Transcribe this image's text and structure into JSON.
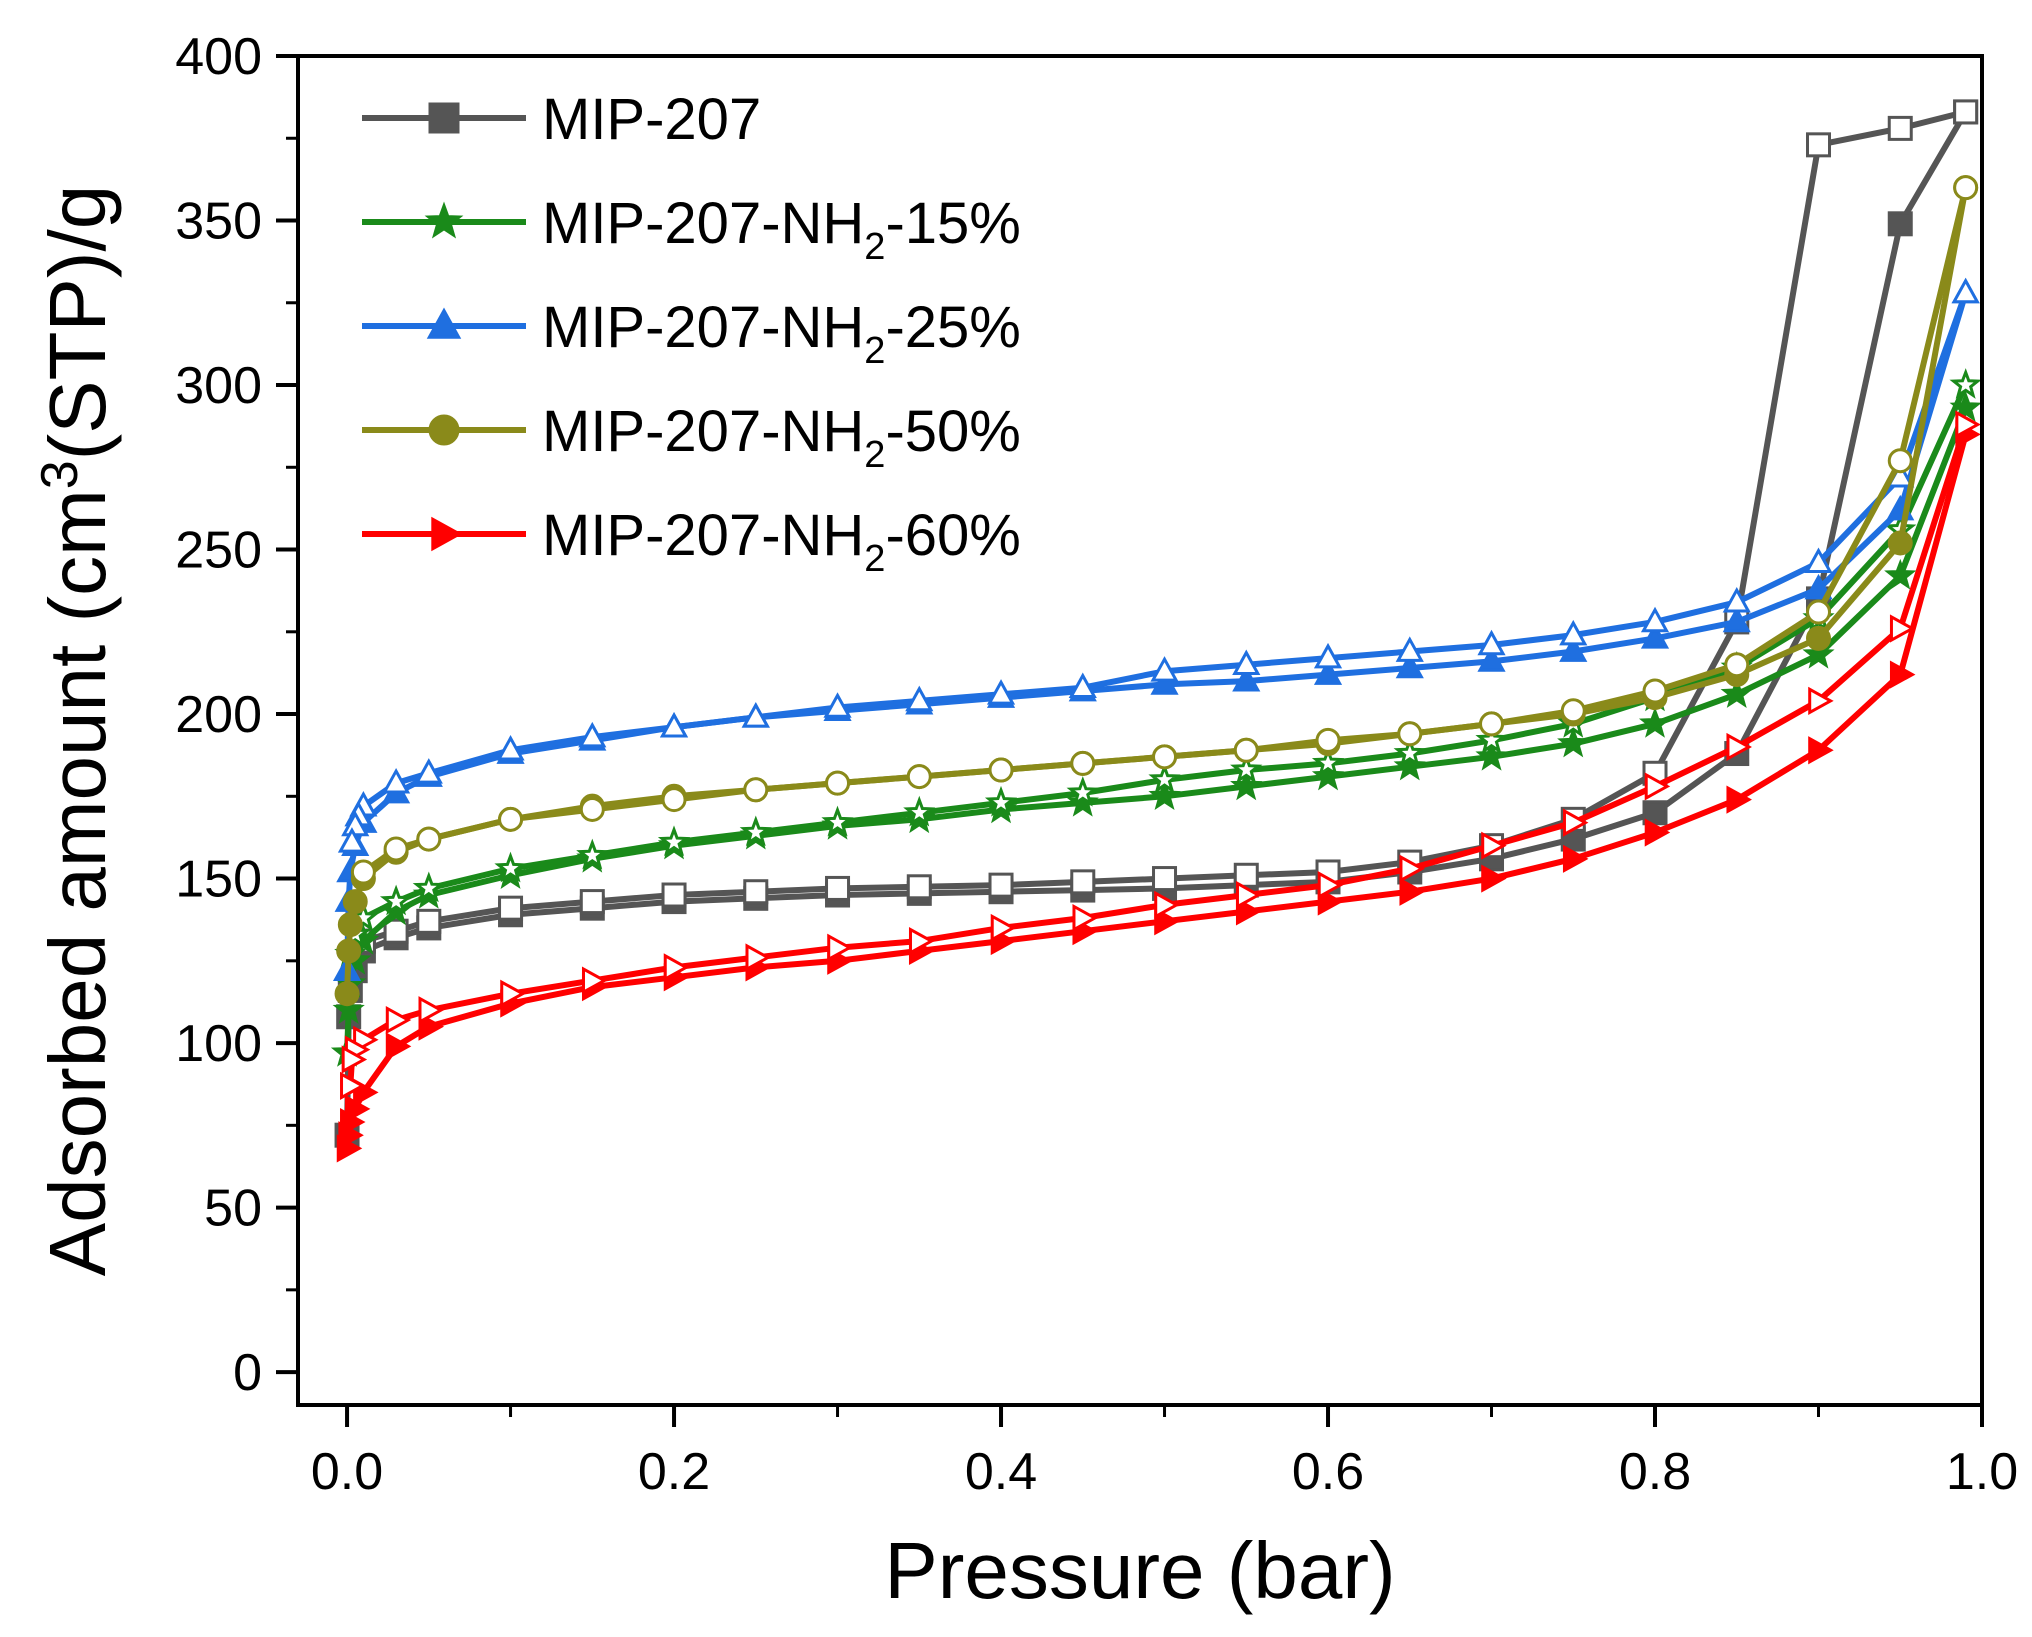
{
  "chart_data": {
    "type": "line",
    "title": "",
    "xlabel": "Pressure (bar)",
    "ylabel_parts": {
      "pre": "Adsorbed amount (cm",
      "sup": "3",
      "post": "(STP)/g"
    },
    "xlim": [
      -0.03,
      1.0
    ],
    "ylim": [
      -10,
      400
    ],
    "xticks": [
      0.0,
      0.2,
      0.4,
      0.6,
      0.8,
      1.0
    ],
    "xtick_labels": [
      "0.0",
      "0.2",
      "0.4",
      "0.6",
      "0.8",
      "1.0"
    ],
    "yticks": [
      0,
      50,
      100,
      150,
      200,
      250,
      300,
      350,
      400
    ],
    "ytick_labels": [
      "0",
      "50",
      "100",
      "150",
      "200",
      "250",
      "300",
      "350",
      "400"
    ],
    "legend_position": "top-left",
    "notes": "Filled markers = adsorption branch, open markers = desorption branch",
    "series": [
      {
        "key": "mip207",
        "label_parts": {
          "pre": "MIP-207",
          "sub": "",
          "post": ""
        },
        "color": "#555555",
        "marker": "square",
        "adsorption": {
          "x": [
            0.0,
            0.001,
            0.002,
            0.005,
            0.01,
            0.03,
            0.05,
            0.1,
            0.15,
            0.2,
            0.25,
            0.3,
            0.35,
            0.4,
            0.45,
            0.5,
            0.55,
            0.6,
            0.65,
            0.7,
            0.75,
            0.8,
            0.85,
            0.9,
            0.95,
            0.99
          ],
          "y": [
            72,
            108,
            116,
            122,
            128,
            132,
            135,
            139,
            141,
            143,
            144,
            145,
            145.5,
            146,
            146.5,
            147,
            148,
            149,
            152,
            156,
            162,
            170,
            188,
            235,
            349,
            383
          ]
        },
        "desorption": {
          "x": [
            0.99,
            0.95,
            0.9,
            0.85,
            0.8,
            0.75,
            0.7,
            0.65,
            0.6,
            0.55,
            0.5,
            0.45,
            0.4,
            0.35,
            0.3,
            0.25,
            0.2,
            0.15,
            0.1,
            0.05,
            0.03,
            0.01
          ],
          "y": [
            383,
            378,
            373,
            228,
            182,
            168,
            160,
            155,
            152,
            151,
            150,
            149,
            148,
            147.5,
            147,
            146,
            145,
            143,
            141,
            137,
            134,
            131
          ]
        }
      },
      {
        "key": "nh2_15",
        "label_parts": {
          "pre": "MIP-207-NH",
          "sub": "2",
          "post": "-15%"
        },
        "color": "#1a8a1a",
        "marker": "star",
        "adsorption": {
          "x": [
            0.0,
            0.001,
            0.002,
            0.005,
            0.01,
            0.03,
            0.05,
            0.1,
            0.15,
            0.2,
            0.25,
            0.3,
            0.35,
            0.4,
            0.45,
            0.5,
            0.55,
            0.6,
            0.65,
            0.7,
            0.75,
            0.8,
            0.85,
            0.9,
            0.95,
            0.99
          ],
          "y": [
            97,
            110,
            118,
            125,
            131,
            140,
            145,
            151,
            156,
            160,
            163,
            166,
            168,
            171,
            173,
            175,
            178,
            181,
            184,
            187,
            191,
            197,
            206,
            218,
            242,
            293
          ]
        },
        "desorption": {
          "x": [
            0.99,
            0.95,
            0.9,
            0.85,
            0.8,
            0.75,
            0.7,
            0.65,
            0.6,
            0.55,
            0.5,
            0.45,
            0.4,
            0.35,
            0.3,
            0.25,
            0.2,
            0.15,
            0.1,
            0.05,
            0.03,
            0.01,
            0.005,
            0.002
          ],
          "y": [
            300,
            256,
            229,
            214,
            205,
            197,
            192,
            188,
            185,
            183,
            180,
            176,
            173,
            170,
            167,
            164,
            161,
            157,
            153,
            147,
            143,
            138,
            133,
            127
          ]
        }
      },
      {
        "key": "nh2_25",
        "label_parts": {
          "pre": "MIP-207-NH",
          "sub": "2",
          "post": "-25%"
        },
        "color": "#1f6fe0",
        "marker": "triangle-up",
        "adsorption": {
          "x": [
            0.0,
            0.001,
            0.002,
            0.005,
            0.01,
            0.03,
            0.05,
            0.1,
            0.15,
            0.2,
            0.25,
            0.3,
            0.35,
            0.4,
            0.45,
            0.5,
            0.55,
            0.6,
            0.65,
            0.7,
            0.75,
            0.8,
            0.85,
            0.9,
            0.95,
            0.99
          ],
          "y": [
            122,
            143,
            152,
            160,
            167,
            176,
            181,
            188,
            192,
            196,
            199,
            201,
            203,
            205,
            207,
            209,
            210,
            212,
            214,
            216,
            219,
            223,
            228,
            238,
            262,
            328
          ]
        },
        "desorption": {
          "x": [
            0.99,
            0.95,
            0.9,
            0.85,
            0.8,
            0.75,
            0.7,
            0.65,
            0.6,
            0.55,
            0.5,
            0.45,
            0.4,
            0.35,
            0.3,
            0.25,
            0.2,
            0.15,
            0.1,
            0.05,
            0.03,
            0.01,
            0.007,
            0.005,
            0.003
          ],
          "y": [
            328,
            272,
            246,
            234,
            228,
            224,
            221,
            219,
            217,
            215,
            213,
            208,
            206,
            204,
            202,
            199,
            196,
            193,
            189,
            182,
            179,
            172,
            169,
            166,
            161
          ]
        }
      },
      {
        "key": "nh2_50",
        "label_parts": {
          "pre": "MIP-207-NH",
          "sub": "2",
          "post": "-50%"
        },
        "color": "#8a8a1a",
        "marker": "circle",
        "adsorption": {
          "x": [
            0.0,
            0.001,
            0.002,
            0.005,
            0.01,
            0.03,
            0.05,
            0.1,
            0.15,
            0.2,
            0.25,
            0.3,
            0.35,
            0.4,
            0.45,
            0.5,
            0.55,
            0.6,
            0.65,
            0.7,
            0.75,
            0.8,
            0.85,
            0.9,
            0.95,
            0.99
          ],
          "y": [
            115,
            128,
            136,
            143,
            150,
            158,
            162,
            168,
            172,
            175,
            177,
            179,
            181,
            183,
            185,
            187,
            189,
            191,
            194,
            197,
            200,
            205,
            212,
            223,
            252,
            360
          ]
        },
        "desorption": {
          "x": [
            0.99,
            0.95,
            0.9,
            0.85,
            0.8,
            0.75,
            0.7,
            0.65,
            0.6,
            0.55,
            0.5,
            0.45,
            0.4,
            0.35,
            0.3,
            0.25,
            0.2,
            0.15,
            0.1,
            0.05,
            0.03,
            0.01
          ],
          "y": [
            360,
            277,
            231,
            215,
            207,
            201,
            197,
            194,
            192,
            189,
            187,
            185,
            183,
            181,
            179,
            177,
            174,
            171,
            168,
            162,
            159,
            152
          ]
        }
      },
      {
        "key": "nh2_60",
        "label_parts": {
          "pre": "MIP-207-NH",
          "sub": "2",
          "post": "-60%"
        },
        "color": "#ff0000",
        "marker": "triangle-right",
        "adsorption": {
          "x": [
            0.0,
            0.001,
            0.002,
            0.005,
            0.01,
            0.03,
            0.05,
            0.1,
            0.15,
            0.2,
            0.25,
            0.3,
            0.35,
            0.4,
            0.45,
            0.5,
            0.55,
            0.6,
            0.65,
            0.7,
            0.75,
            0.8,
            0.85,
            0.9,
            0.95,
            0.99
          ],
          "y": [
            68,
            72,
            76,
            80,
            85,
            99,
            105,
            112,
            117,
            120,
            123,
            125,
            128,
            131,
            134,
            137,
            140,
            143,
            146,
            150,
            156,
            164,
            174,
            189,
            212,
            285
          ]
        },
        "desorption": {
          "x": [
            0.99,
            0.95,
            0.9,
            0.85,
            0.8,
            0.75,
            0.7,
            0.65,
            0.6,
            0.55,
            0.5,
            0.45,
            0.4,
            0.35,
            0.3,
            0.25,
            0.2,
            0.15,
            0.1,
            0.05,
            0.03,
            0.01,
            0.005,
            0.003,
            0.002
          ],
          "y": [
            288,
            226,
            204,
            190,
            178,
            167,
            160,
            153,
            148,
            145,
            142,
            138,
            135,
            131,
            129,
            126,
            123,
            119,
            115,
            110,
            107,
            101,
            98,
            95,
            87
          ]
        }
      }
    ]
  }
}
